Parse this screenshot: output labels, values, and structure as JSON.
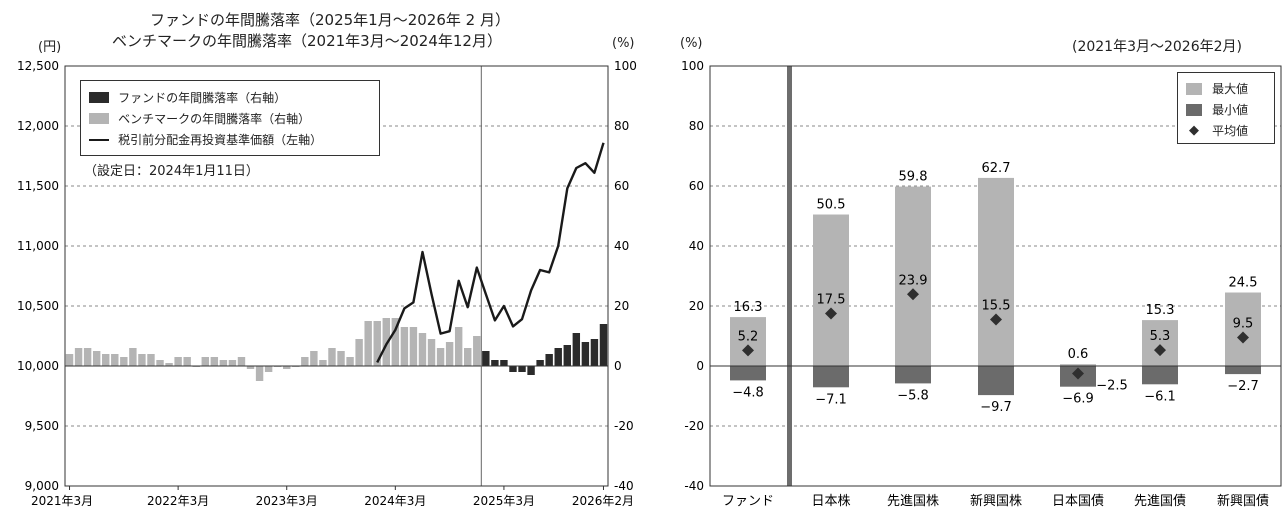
{
  "chart_data": [
    {
      "type": "bar+line",
      "title_line1": "ファンドの年間騰落率（2025年1月～2026年 2 月）",
      "title_line2": "ベンチマークの年間騰落率（2021年3月～2024年12月）",
      "left_unit": "(円)",
      "right_unit": "(%)",
      "setup_note": "（設定日：2024年1月11日）",
      "legend": [
        {
          "label": "ファンドの年間騰落率（右軸）",
          "kind": "bar",
          "color": "#2b2b2b"
        },
        {
          "label": "ベンチマークの年間騰落率（右軸）",
          "kind": "bar",
          "color": "#b4b4b4"
        },
        {
          "label": "税引前分配金再投資基準価額（左軸）",
          "kind": "line",
          "color": "#1a1a1a"
        }
      ],
      "left_axis": {
        "min": 9000,
        "max": 12500,
        "ticks": [
          "9,000",
          "9,500",
          "10,000",
          "10,500",
          "11,000",
          "11,500",
          "12,000",
          "12,500"
        ]
      },
      "right_axis": {
        "min": -40,
        "max": 100,
        "ticks": [
          "-40",
          "-20",
          "0",
          "20",
          "40",
          "60",
          "80",
          "100"
        ]
      },
      "x_tick_labels": [
        "2021年3月",
        "2022年3月",
        "2023年3月",
        "2024年3月",
        "2025年3月",
        "2026年2月"
      ],
      "benchmark_bars": {
        "start": "2021-03",
        "end": "2024-12",
        "values": [
          4,
          6,
          6,
          5,
          4,
          4,
          3,
          6,
          4,
          4,
          2,
          1,
          3,
          3,
          0,
          3,
          3,
          2,
          2,
          3,
          -1,
          -5,
          -2,
          0,
          -1,
          0,
          3,
          5,
          2,
          6,
          5,
          3,
          9,
          15,
          15,
          16,
          16,
          13,
          13,
          11,
          9,
          6,
          8,
          13,
          6,
          10
        ]
      },
      "fund_bars": {
        "start": "2025-01",
        "end": "2026-02",
        "values": [
          5,
          2,
          2,
          -2,
          -2,
          -3,
          2,
          4,
          6,
          7,
          11,
          8,
          9,
          14
        ]
      },
      "nav_line": {
        "start": "2024-01",
        "end": "2026-02",
        "values": [
          10030,
          10180,
          10300,
          10480,
          10530,
          10950,
          10600,
          10270,
          10290,
          10710,
          10490,
          10820,
          10600,
          10380,
          10500,
          10330,
          10390,
          10630,
          10800,
          10780,
          11000,
          11480,
          11650,
          11690,
          11610,
          11860
        ]
      }
    },
    {
      "type": "bar",
      "period": "(2021年3月～2026年2月)",
      "y_unit": "(%)",
      "ylim": [
        -40,
        100
      ],
      "y_ticks": [
        "-40",
        "-20",
        "0",
        "20",
        "40",
        "60",
        "80",
        "100"
      ],
      "legend": [
        {
          "label": "最大値",
          "color": "#b4b4b4",
          "kind": "bar"
        },
        {
          "label": "最小値",
          "color": "#6b6b6b",
          "kind": "bar"
        },
        {
          "label": "平均値",
          "color": "#2f2f2f",
          "kind": "diamond"
        }
      ],
      "categories": [
        "ファンド",
        "日本株",
        "先進国株",
        "新興国株",
        "日本国債",
        "先進国債",
        "新興国債"
      ],
      "max": [
        16.3,
        50.5,
        59.8,
        62.7,
        0.6,
        15.3,
        24.5
      ],
      "min": [
        -4.8,
        -7.1,
        -5.8,
        -9.7,
        -6.9,
        -6.1,
        -2.7
      ],
      "avg": [
        5.2,
        17.5,
        23.9,
        15.5,
        -2.5,
        5.3,
        9.5
      ],
      "max_labels": [
        "16.3",
        "50.5",
        "59.8",
        "62.7",
        "0.6",
        "15.3",
        "24.5"
      ],
      "min_labels": [
        "−4.8",
        "−7.1",
        "−5.8",
        "−9.7",
        "−6.9",
        "−6.1",
        "−2.7"
      ],
      "avg_labels": [
        "5.2",
        "17.5",
        "23.9",
        "15.5",
        "−2.5",
        "5.3",
        "9.5"
      ]
    }
  ]
}
